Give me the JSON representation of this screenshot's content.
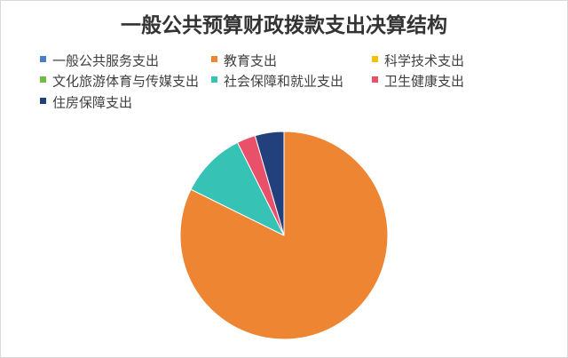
{
  "chart_data": {
    "type": "pie",
    "title": "一般公共预算财政拨款支出决算结构",
    "categories": [
      "一般公共服务支出",
      "教育支出",
      "科学技术支出",
      "文化旅游体育与传媒支出",
      "社会保障和就业支出",
      "卫生健康支出",
      "住房保障支出"
    ],
    "values": [
      0,
      82.3,
      0,
      0,
      10.3,
      2.9,
      4.5
    ],
    "colors": [
      "#4A7EC7",
      "#EE8532",
      "#F5C000",
      "#6DBE45",
      "#36C2B4",
      "#E9506A",
      "#21407C"
    ],
    "legend_position": "top",
    "slice_border_color": "#ffffff"
  }
}
